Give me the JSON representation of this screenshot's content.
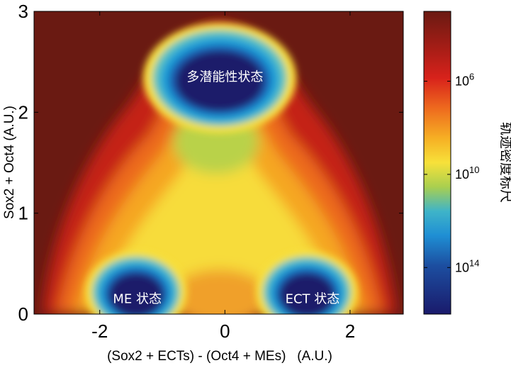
{
  "chart_data": {
    "type": "heatmap",
    "title": "",
    "xlabel": "(Sox2 + ECTs) - (Oct4 + MEs)   (A.U.)",
    "ylabel": "Sox2 + Oct4 (A.U.)",
    "xlim": [
      -3.05,
      2.85
    ],
    "ylim": [
      0,
      3
    ],
    "x_ticks": [
      "-2",
      "0",
      "2"
    ],
    "y_ticks": [
      "0",
      "1",
      "2",
      "3"
    ],
    "states": [
      {
        "label": "多潜能性状态",
        "x": 0.0,
        "y": 2.35
      },
      {
        "label": "ME 状态",
        "x": -1.4,
        "y": 0.15
      },
      {
        "label": "ECT 状态",
        "x": 1.4,
        "y": 0.15
      }
    ],
    "colorbar": {
      "label": "轨迹密度标尺",
      "scale": "log",
      "ticks": [
        {
          "base": "10",
          "exp": "6",
          "value": 1000000.0
        },
        {
          "base": "10",
          "exp": "10",
          "value": 10000000000.0
        },
        {
          "base": "10",
          "exp": "14",
          "value": 100000000000000.0
        }
      ],
      "range": [
        1000.0,
        1e+16
      ],
      "colors_top_to_bottom": [
        "#6a1a12",
        "#c21f1a",
        "#e84a1c",
        "#f5a020",
        "#f7e13a",
        "#b9d24a",
        "#28a8d8",
        "#1c4ea0",
        "#1a1a6b"
      ]
    }
  }
}
